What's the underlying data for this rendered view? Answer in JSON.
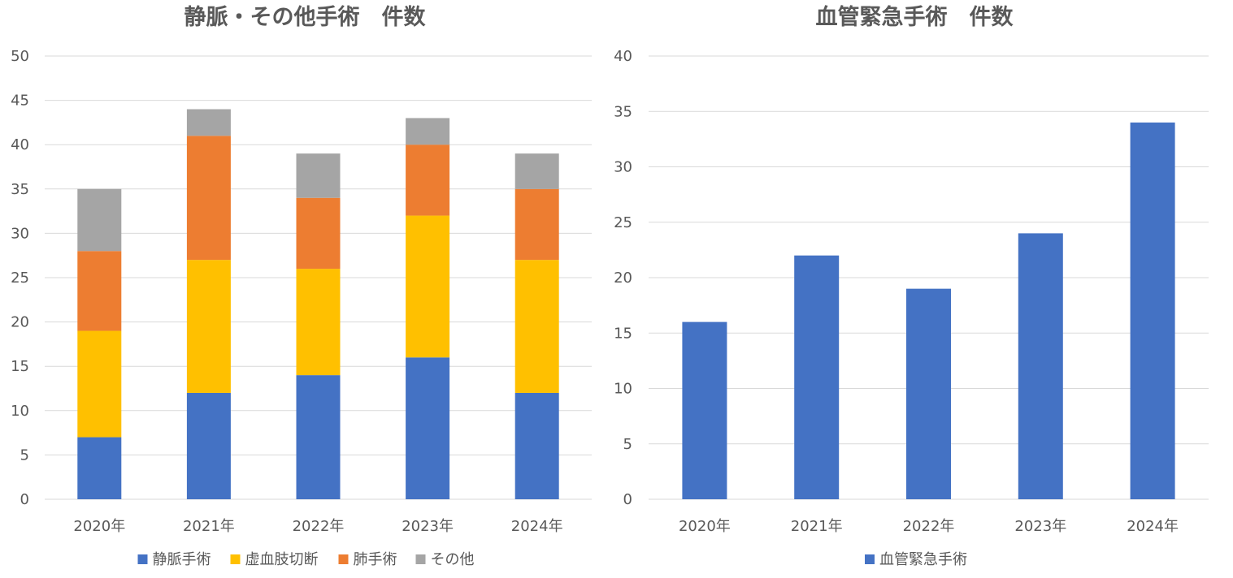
{
  "chart_data": [
    {
      "type": "bar",
      "stacked": true,
      "title": "静脈・その他手術　件数",
      "categories": [
        "2020年",
        "2021年",
        "2022年",
        "2023年",
        "2024年"
      ],
      "series": [
        {
          "name": "静脈手術",
          "color": "#4472c4",
          "values": [
            7,
            12,
            14,
            16,
            12
          ]
        },
        {
          "name": "虚血肢切断",
          "color": "#ffc000",
          "values": [
            12,
            15,
            12,
            16,
            15
          ]
        },
        {
          "name": "肺手術",
          "color": "#ed7d31",
          "values": [
            9,
            14,
            8,
            8,
            8
          ]
        },
        {
          "name": "その他",
          "color": "#a5a5a5",
          "values": [
            7,
            3,
            5,
            3,
            4
          ]
        }
      ],
      "ylim": [
        0,
        50
      ],
      "yticks": [
        "0",
        "5",
        "10",
        "15",
        "20",
        "25",
        "30",
        "35",
        "40",
        "45",
        "50"
      ],
      "grid": true,
      "legend": "bottom"
    },
    {
      "type": "bar",
      "title": "血管緊急手術　件数",
      "categories": [
        "2020年",
        "2021年",
        "2022年",
        "2023年",
        "2024年"
      ],
      "series": [
        {
          "name": "血管緊急手術",
          "color": "#4472c4",
          "values": [
            16,
            22,
            19,
            24,
            34
          ]
        }
      ],
      "ylim": [
        0,
        40
      ],
      "yticks": [
        "0",
        "5",
        "10",
        "15",
        "20",
        "25",
        "30",
        "35",
        "40"
      ],
      "grid": true,
      "legend": "bottom"
    }
  ]
}
